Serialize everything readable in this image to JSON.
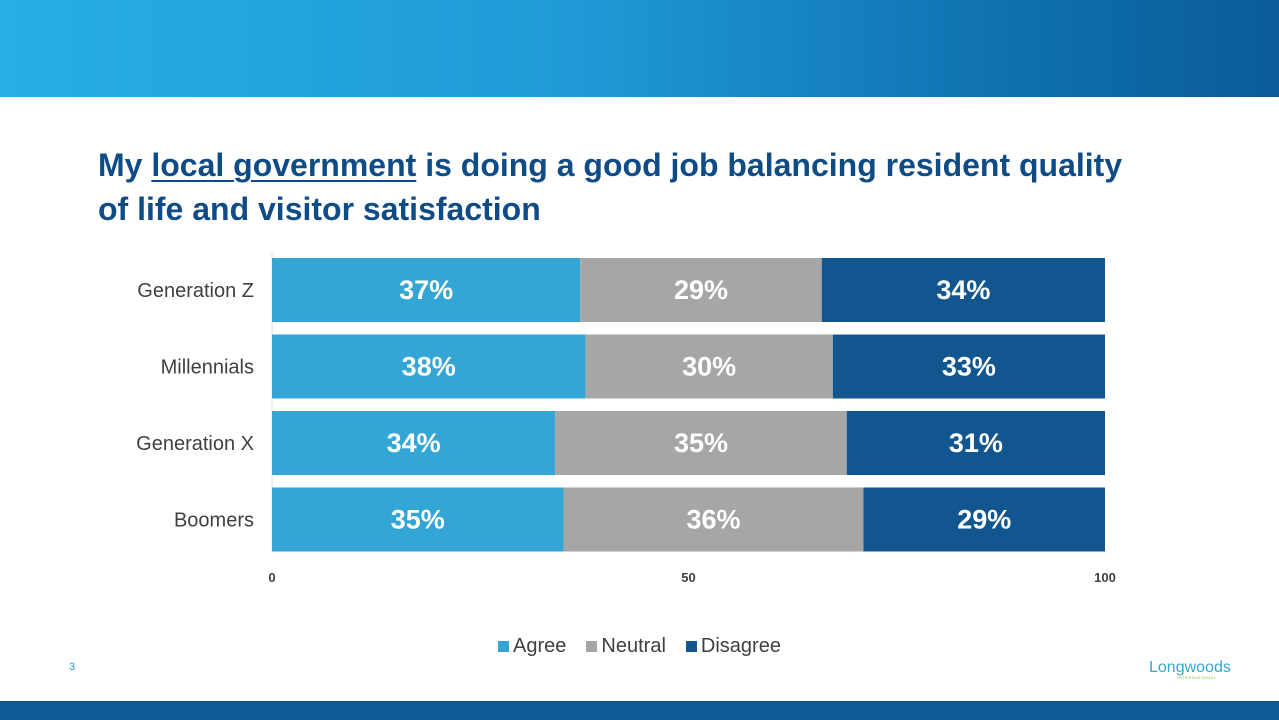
{
  "title": {
    "prefix": "My ",
    "underlined": "local government",
    "suffix": " is doing a good job balancing resident quality of life and visitor satisfaction"
  },
  "page_number": "3",
  "logo": {
    "text": "Longwoods",
    "subtext": "INTERNATIONAL"
  },
  "colors": {
    "agree": "#34a6d5",
    "neutral": "#a6a6a6",
    "disagree": "#12568f",
    "axis_text": "#404040"
  },
  "chart_data": {
    "type": "bar",
    "orientation": "horizontal",
    "stacked": true,
    "categories": [
      "Generation Z",
      "Millennials",
      "Generation X",
      "Boomers"
    ],
    "series": [
      {
        "name": "Agree",
        "values": [
          37,
          38,
          34,
          35
        ],
        "labels": [
          "37%",
          "38%",
          "34%",
          "35%"
        ]
      },
      {
        "name": "Neutral",
        "values": [
          29,
          30,
          35,
          36
        ],
        "labels": [
          "29%",
          "30%",
          "35%",
          "36%"
        ]
      },
      {
        "name": "Disagree",
        "values": [
          34,
          33,
          31,
          29
        ],
        "labels": [
          "34%",
          "33%",
          "31%",
          "29%"
        ]
      }
    ],
    "xlim": [
      0,
      100
    ],
    "xticks": [
      0,
      50,
      100
    ],
    "xtick_labels": [
      "0",
      "50",
      "100"
    ],
    "grid": false,
    "legend_position": "bottom"
  }
}
